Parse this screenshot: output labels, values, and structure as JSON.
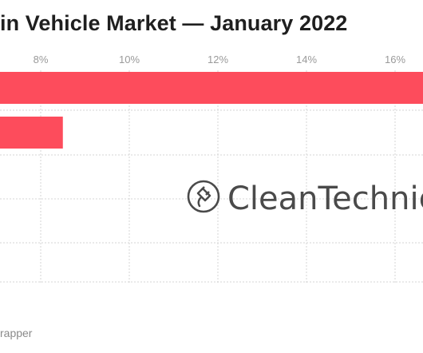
{
  "title": "in Vehicle Market — January 2022",
  "source_credit": "rapper",
  "watermark": {
    "text": "CleanTechnica",
    "icon": "plug-icon"
  },
  "colors": {
    "bar": "#fd4c5c",
    "grid": "#d6d6d6",
    "tick": "#9a9a9a",
    "text": "#1f1f1f"
  },
  "chart_data": {
    "type": "bar",
    "orientation": "horizontal",
    "title": "in Vehicle Market — January 2022",
    "x_ticks": [
      "8%",
      "10%",
      "12%",
      "14%",
      "16%"
    ],
    "grid": true,
    "series": [
      {
        "values": [
          16.7,
          8.5,
          null,
          null
        ]
      }
    ]
  }
}
